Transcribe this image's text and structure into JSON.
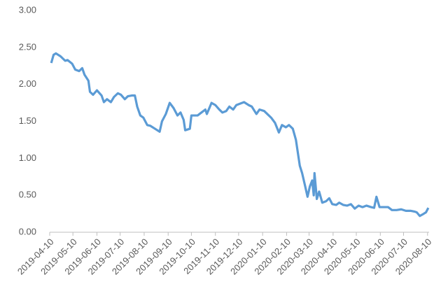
{
  "chart_data": {
    "type": "line",
    "x": [
      "2019-04-12",
      "2019-04-15",
      "2019-04-18",
      "2019-04-24",
      "2019-04-30",
      "2019-05-03",
      "2019-05-09",
      "2019-05-13",
      "2019-05-18",
      "2019-05-22",
      "2019-05-25",
      "2019-05-30",
      "2019-06-01",
      "2019-06-05",
      "2019-06-10",
      "2019-06-16",
      "2019-06-19",
      "2019-06-23",
      "2019-06-28",
      "2019-07-02",
      "2019-07-07",
      "2019-07-11",
      "2019-07-16",
      "2019-07-20",
      "2019-07-25",
      "2019-07-29",
      "2019-08-01",
      "2019-08-05",
      "2019-08-09",
      "2019-08-14",
      "2019-08-18",
      "2019-08-24",
      "2019-08-30",
      "2019-09-02",
      "2019-09-07",
      "2019-09-12",
      "2019-09-17",
      "2019-09-22",
      "2019-09-26",
      "2019-09-30",
      "2019-10-02",
      "2019-10-08",
      "2019-10-10",
      "2019-10-18",
      "2019-10-23",
      "2019-10-28",
      "2019-10-30",
      "2019-11-05",
      "2019-11-10",
      "2019-11-15",
      "2019-11-19",
      "2019-11-24",
      "2019-11-28",
      "2019-12-03",
      "2019-12-07",
      "2019-12-12",
      "2019-12-17",
      "2019-12-23",
      "2019-12-27",
      "2020-01-02",
      "2020-01-06",
      "2020-01-12",
      "2020-01-16",
      "2020-01-21",
      "2020-01-26",
      "2020-01-31",
      "2020-02-04",
      "2020-02-09",
      "2020-02-13",
      "2020-02-18",
      "2020-02-22",
      "2020-02-27",
      "2020-03-01",
      "2020-03-05",
      "2020-03-08",
      "2020-03-11",
      "2020-03-14",
      "2020-03-16",
      "2020-03-17",
      "2020-03-20",
      "2020-03-23",
      "2020-03-27",
      "2020-04-01",
      "2020-04-05",
      "2020-04-09",
      "2020-04-14",
      "2020-04-18",
      "2020-04-23",
      "2020-04-28",
      "2020-05-03",
      "2020-05-08",
      "2020-05-13",
      "2020-05-18",
      "2020-05-23",
      "2020-05-29",
      "2020-06-02",
      "2020-06-05",
      "2020-06-09",
      "2020-06-14",
      "2020-06-20",
      "2020-06-25",
      "2020-07-01",
      "2020-07-07",
      "2020-07-13",
      "2020-07-19",
      "2020-07-24",
      "2020-07-27",
      "2020-07-31",
      "2020-08-05",
      "2020-08-08",
      "2020-08-11"
    ],
    "series": [
      {
        "color": "#5b9bd5",
        "values": [
          2.29,
          2.4,
          2.42,
          2.38,
          2.32,
          2.33,
          2.28,
          2.2,
          2.18,
          2.22,
          2.13,
          2.05,
          1.9,
          1.86,
          1.92,
          1.85,
          1.76,
          1.8,
          1.76,
          1.83,
          1.88,
          1.86,
          1.8,
          1.84,
          1.85,
          1.85,
          1.7,
          1.58,
          1.55,
          1.45,
          1.44,
          1.4,
          1.36,
          1.5,
          1.6,
          1.75,
          1.68,
          1.58,
          1.62,
          1.52,
          1.38,
          1.4,
          1.58,
          1.58,
          1.62,
          1.66,
          1.6,
          1.75,
          1.72,
          1.66,
          1.62,
          1.64,
          1.7,
          1.66,
          1.72,
          1.74,
          1.76,
          1.72,
          1.7,
          1.6,
          1.66,
          1.64,
          1.6,
          1.55,
          1.48,
          1.35,
          1.45,
          1.42,
          1.45,
          1.4,
          1.25,
          0.9,
          0.8,
          0.62,
          0.48,
          0.62,
          0.7,
          0.5,
          0.8,
          0.45,
          0.55,
          0.4,
          0.42,
          0.46,
          0.38,
          0.37,
          0.4,
          0.37,
          0.36,
          0.38,
          0.32,
          0.36,
          0.34,
          0.36,
          0.34,
          0.33,
          0.48,
          0.34,
          0.34,
          0.34,
          0.3,
          0.3,
          0.31,
          0.29,
          0.29,
          0.28,
          0.27,
          0.22,
          0.25,
          0.27,
          0.33
        ]
      }
    ],
    "xlim": [
      "2019-04-10",
      "2020-08-12"
    ],
    "xticks": [
      "2019-04-10",
      "2019-05-10",
      "2019-06-10",
      "2019-07-10",
      "2019-08-10",
      "2019-09-10",
      "2019-10-10",
      "2019-11-10",
      "2019-12-10",
      "2020-01-10",
      "2020-02-10",
      "2020-03-10",
      "2020-04-10",
      "2020-05-10",
      "2020-06-10",
      "2020-07-10",
      "2020-08-10"
    ],
    "ylim": [
      0,
      3
    ],
    "yticks": [
      {
        "value": 0,
        "label": "0.00"
      },
      {
        "value": 0.5,
        "label": "0.50"
      },
      {
        "value": 1,
        "label": "1.00"
      },
      {
        "value": 1.5,
        "label": "1.50"
      },
      {
        "value": 2,
        "label": "2.00"
      },
      {
        "value": 2.5,
        "label": "2.50"
      },
      {
        "value": 3,
        "label": "3.00"
      }
    ],
    "grid": false
  }
}
